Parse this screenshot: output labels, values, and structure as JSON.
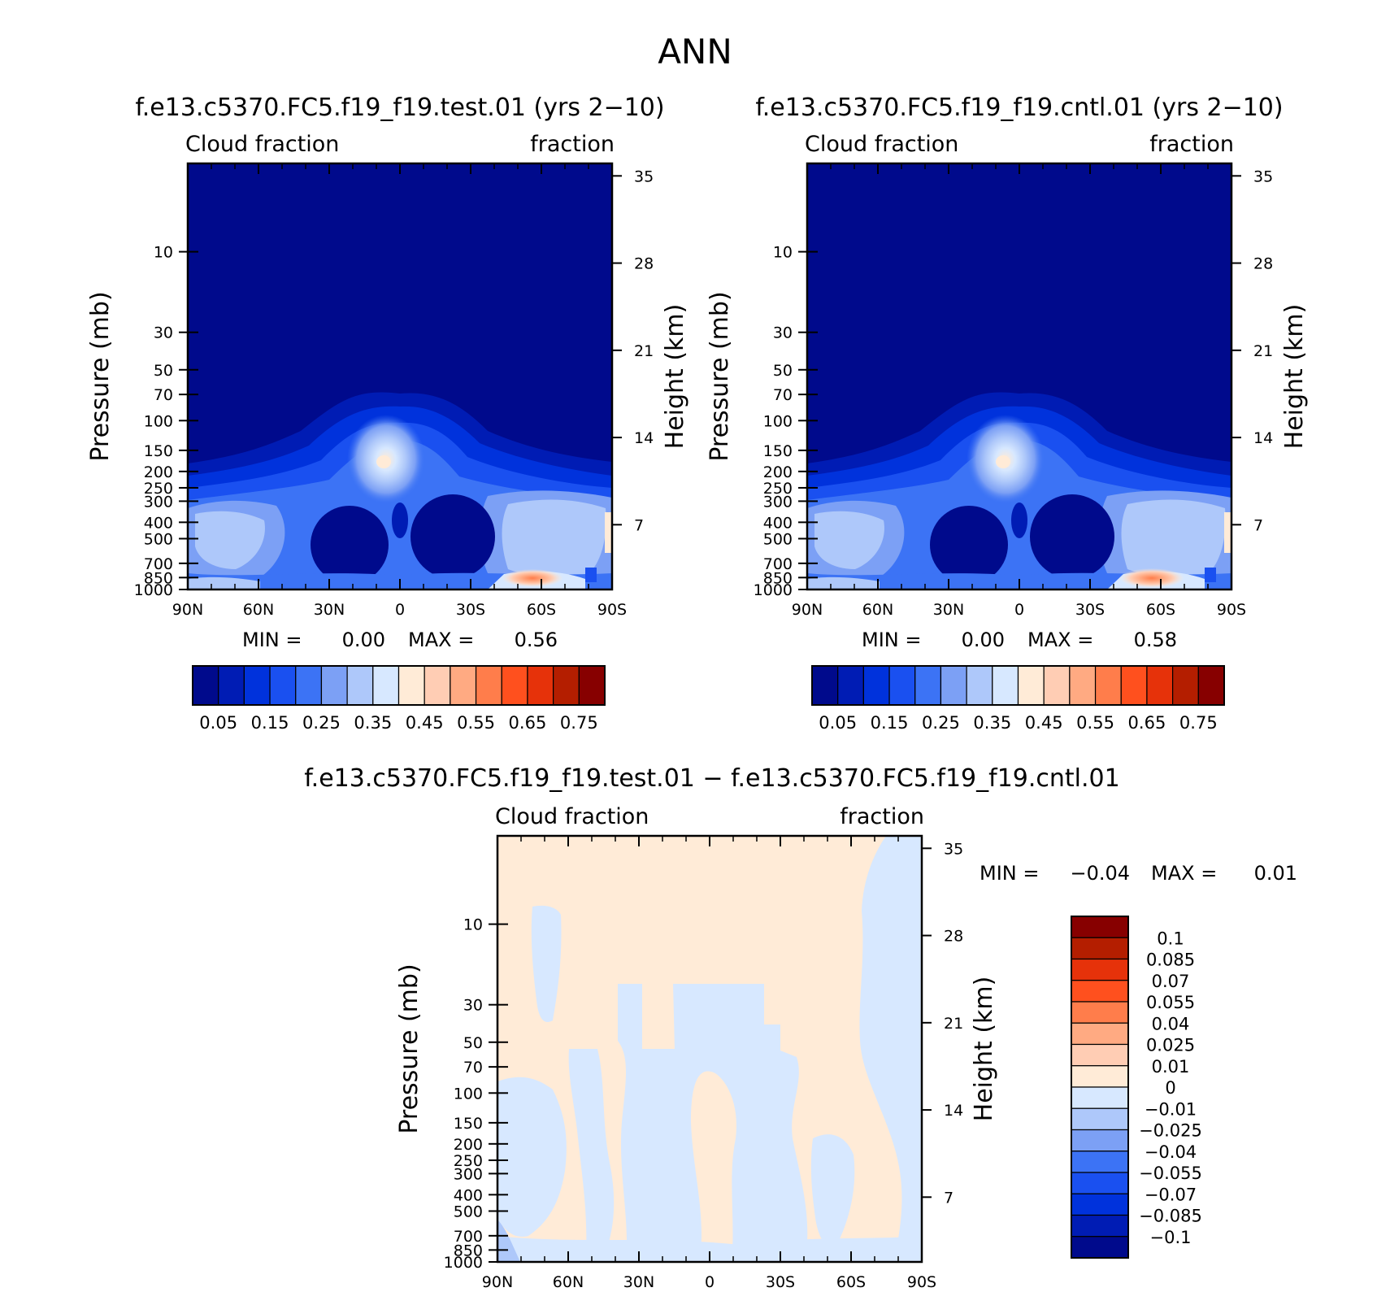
{
  "figure": {
    "title": "ANN"
  },
  "chart_data": [
    {
      "id": "test",
      "type": "heatmap",
      "title": "f.e13.c5370.FC5.f19_f19.test.01 (yrs 2−10)",
      "left_label": "Cloud fraction",
      "right_label": "fraction",
      "xlabel": "",
      "ylabel": "Pressure (mb)",
      "y2label": "Height (km)",
      "x_ticks": [
        "90N",
        "60N",
        "30N",
        "0",
        "30S",
        "60S",
        "90S"
      ],
      "x_values": [
        90,
        60,
        30,
        0,
        -30,
        -60,
        -90
      ],
      "y_ticks": [
        "10",
        "30",
        "50",
        "70",
        "100",
        "150",
        "200",
        "250",
        "300",
        "400",
        "500",
        "700",
        "850",
        "1000"
      ],
      "y_values": [
        10,
        30,
        50,
        70,
        100,
        150,
        200,
        250,
        300,
        400,
        500,
        700,
        850,
        1000
      ],
      "ylim": [
        3,
        1000
      ],
      "y_scale": "log",
      "y2_ticks": [
        "35",
        "28",
        "21",
        "14",
        "7"
      ],
      "y2_values": [
        35,
        28,
        21,
        14,
        7
      ],
      "min_label": "MIN =",
      "min_value": "0.00",
      "max_label": "MAX =",
      "max_value": "0.56",
      "colorbar_orientation": "horizontal",
      "colorbar_labels": [
        "0.05",
        "0.15",
        "0.25",
        "0.35",
        "0.45",
        "0.55",
        "0.65",
        "0.75"
      ],
      "features": [
        {
          "kind": "tropical-tower-peak",
          "lat": 8,
          "p": 200,
          "value": 0.45
        },
        {
          "kind": "midlatitude-low-cloud",
          "lat": -60,
          "p": 850,
          "value": 0.56
        },
        {
          "kind": "subtropical-minimum",
          "lat": 20,
          "p": 700,
          "value": 0.08
        },
        {
          "kind": "subtropical-minimum",
          "lat": -20,
          "p": 700,
          "value": 0.08
        }
      ]
    },
    {
      "id": "cntl",
      "type": "heatmap",
      "title": "f.e13.c5370.FC5.f19_f19.cntl.01 (yrs 2−10)",
      "left_label": "Cloud fraction",
      "right_label": "fraction",
      "xlabel": "",
      "ylabel": "Pressure (mb)",
      "y2label": "Height (km)",
      "x_ticks": [
        "90N",
        "60N",
        "30N",
        "0",
        "30S",
        "60S",
        "90S"
      ],
      "x_values": [
        90,
        60,
        30,
        0,
        -30,
        -60,
        -90
      ],
      "y_ticks": [
        "10",
        "30",
        "50",
        "70",
        "100",
        "150",
        "200",
        "250",
        "300",
        "400",
        "500",
        "700",
        "850",
        "1000"
      ],
      "y_values": [
        10,
        30,
        50,
        70,
        100,
        150,
        200,
        250,
        300,
        400,
        500,
        700,
        850,
        1000
      ],
      "ylim": [
        3,
        1000
      ],
      "y_scale": "log",
      "y2_ticks": [
        "35",
        "28",
        "21",
        "14",
        "7"
      ],
      "y2_values": [
        35,
        28,
        21,
        14,
        7
      ],
      "min_label": "MIN =",
      "min_value": "0.00",
      "max_label": "MAX =",
      "max_value": "0.58",
      "colorbar_orientation": "horizontal",
      "colorbar_labels": [
        "0.05",
        "0.15",
        "0.25",
        "0.35",
        "0.45",
        "0.55",
        "0.65",
        "0.75"
      ],
      "features": [
        {
          "kind": "tropical-tower-peak",
          "lat": 8,
          "p": 200,
          "value": 0.46
        },
        {
          "kind": "midlatitude-low-cloud",
          "lat": -60,
          "p": 850,
          "value": 0.58
        },
        {
          "kind": "subtropical-minimum",
          "lat": 20,
          "p": 700,
          "value": 0.08
        },
        {
          "kind": "subtropical-minimum",
          "lat": -20,
          "p": 700,
          "value": 0.08
        }
      ]
    },
    {
      "id": "diff",
      "type": "heatmap",
      "title": "f.e13.c5370.FC5.f19_f19.test.01 − f.e13.c5370.FC5.f19_f19.cntl.01",
      "left_label": "Cloud fraction",
      "right_label": "fraction",
      "xlabel": "",
      "ylabel": "Pressure (mb)",
      "y2label": "Height (km)",
      "x_ticks": [
        "90N",
        "60N",
        "30N",
        "0",
        "30S",
        "60S",
        "90S"
      ],
      "x_values": [
        90,
        60,
        30,
        0,
        -30,
        -60,
        -90
      ],
      "y_ticks": [
        "10",
        "30",
        "50",
        "70",
        "100",
        "150",
        "200",
        "250",
        "300",
        "400",
        "500",
        "700",
        "850",
        "1000"
      ],
      "y_values": [
        10,
        30,
        50,
        70,
        100,
        150,
        200,
        250,
        300,
        400,
        500,
        700,
        850,
        1000
      ],
      "ylim": [
        3,
        1000
      ],
      "y_scale": "log",
      "y2_ticks": [
        "35",
        "28",
        "21",
        "14",
        "7"
      ],
      "y2_values": [
        35,
        28,
        21,
        14,
        7
      ],
      "min_label": "MIN =",
      "min_value": "−0.04",
      "max_label": "MAX =",
      "max_value": "0.01",
      "colorbar_orientation": "vertical",
      "colorbar_labels": [
        "0.1",
        "0.085",
        "0.07",
        "0.055",
        "0.04",
        "0.025",
        "0.01",
        "0",
        "−0.01",
        "−0.025",
        "−0.04",
        "−0.055",
        "−0.07",
        "−0.085",
        "−0.1"
      ],
      "regions": [
        {
          "sign": "negative",
          "lat_range": [
            -75,
            -90
          ],
          "p_range": [
            3,
            1000
          ]
        },
        {
          "sign": "negative",
          "lat_range": [
            -2,
            -15
          ],
          "p_range": [
            30,
            100
          ]
        },
        {
          "sign": "negative",
          "lat_range": [
            78,
            72
          ],
          "p_range": [
            15,
            45
          ]
        },
        {
          "sign": "negative",
          "lat_range": [
            55,
            30
          ],
          "p_range": [
            70,
            700
          ]
        }
      ]
    }
  ],
  "colors": {
    "absolute_scale": [
      "#000a8c",
      "#001cb4",
      "#0032dc",
      "#1a50f0",
      "#3c73f5",
      "#7ca0f5",
      "#aec8fa",
      "#d7e8ff",
      "#ffebd7",
      "#ffcdb4",
      "#ffaa82",
      "#ff7d4b",
      "#ff501e",
      "#e6320a",
      "#b41e00",
      "#870000"
    ],
    "difference_scale": [
      "#870000",
      "#b41e00",
      "#e6320a",
      "#ff501e",
      "#ff7d4b",
      "#ffaa82",
      "#ffcdb4",
      "#ffebd7",
      "#d7e8ff",
      "#aec8fa",
      "#7ca0f5",
      "#3c73f5",
      "#1a50f0",
      "#0032dc",
      "#001cb4",
      "#000a8c"
    ]
  }
}
